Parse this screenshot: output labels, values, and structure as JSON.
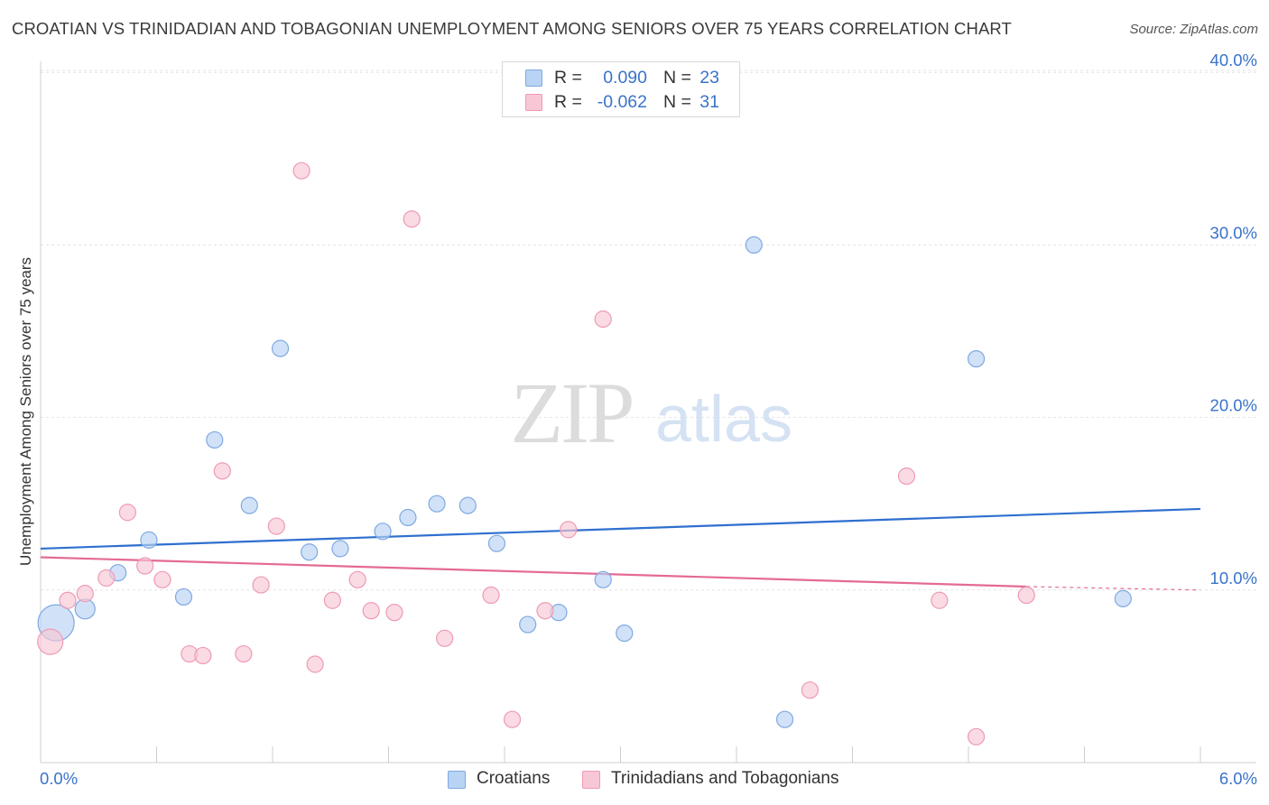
{
  "title": "CROATIAN VS TRINIDADIAN AND TOBAGONIAN UNEMPLOYMENT AMONG SENIORS OVER 75 YEARS CORRELATION CHART",
  "source": "Source: ZipAtlas.com",
  "watermark": {
    "zip": "ZIP",
    "atlas": "atlas"
  },
  "stats": [
    {
      "r_label": "R =",
      "r_value": "0.090",
      "n_label": "N =",
      "n_value": "23"
    },
    {
      "r_label": "R =",
      "r_value": "-0.062",
      "n_label": "N =",
      "n_value": "31"
    }
  ],
  "colors": {
    "croatians_fill": "#b9d3f5",
    "croatians_stroke": "#7ea9e1",
    "croatians_line": "#2f6fcf",
    "trini_fill": "#f8c7d6",
    "trini_stroke": "#ee9ab4",
    "trini_line": "#e46a95",
    "axis_text": "#3a73c9",
    "grid": "#e3e3e3"
  },
  "chart_data": {
    "type": "scatter",
    "title": "CROATIAN VS TRINIDADIAN AND TOBAGONIAN UNEMPLOYMENT AMONG SENIORS OVER 75 YEARS CORRELATION CHART",
    "xlabel": "",
    "ylabel": "Unemployment Among Seniors over 75 years",
    "xlim": [
      0,
      6
    ],
    "ylim": [
      0,
      40
    ],
    "x_tick_labels": [
      "0.0%",
      "6.0%"
    ],
    "y_ticks": [
      10,
      20,
      30,
      40
    ],
    "y_tick_labels": [
      "10.0%",
      "20.0%",
      "30.0%",
      "40.0%"
    ],
    "grid": true,
    "series": [
      {
        "name": "Croatians",
        "points": [
          {
            "x": 0.08,
            "y": 8.1,
            "s": 20
          },
          {
            "x": 0.23,
            "y": 8.9,
            "s": 11
          },
          {
            "x": 0.4,
            "y": 11.0,
            "s": 9
          },
          {
            "x": 0.56,
            "y": 12.9,
            "s": 9
          },
          {
            "x": 0.74,
            "y": 9.6,
            "s": 9
          },
          {
            "x": 0.9,
            "y": 18.7,
            "s": 9
          },
          {
            "x": 1.08,
            "y": 14.9,
            "s": 9
          },
          {
            "x": 1.24,
            "y": 24.0,
            "s": 9
          },
          {
            "x": 1.39,
            "y": 12.2,
            "s": 9
          },
          {
            "x": 1.55,
            "y": 12.4,
            "s": 9
          },
          {
            "x": 1.77,
            "y": 13.4,
            "s": 9
          },
          {
            "x": 1.9,
            "y": 14.2,
            "s": 9
          },
          {
            "x": 2.05,
            "y": 15.0,
            "s": 9
          },
          {
            "x": 2.21,
            "y": 14.9,
            "s": 9
          },
          {
            "x": 2.36,
            "y": 12.7,
            "s": 9
          },
          {
            "x": 2.52,
            "y": 8.0,
            "s": 9
          },
          {
            "x": 2.68,
            "y": 8.7,
            "s": 9
          },
          {
            "x": 2.91,
            "y": 10.6,
            "s": 9
          },
          {
            "x": 3.02,
            "y": 7.5,
            "s": 9
          },
          {
            "x": 3.69,
            "y": 30.0,
            "s": 9
          },
          {
            "x": 3.85,
            "y": 2.5,
            "s": 9
          },
          {
            "x": 4.84,
            "y": 23.4,
            "s": 9
          },
          {
            "x": 5.6,
            "y": 9.5,
            "s": 9
          }
        ],
        "trend": {
          "x": [
            0.0,
            6.0
          ],
          "y": [
            12.4,
            14.7
          ]
        }
      },
      {
        "name": "Trinidadians and Tobagonians",
        "points": [
          {
            "x": 0.05,
            "y": 7.0,
            "s": 14
          },
          {
            "x": 0.14,
            "y": 9.4,
            "s": 9
          },
          {
            "x": 0.23,
            "y": 9.8,
            "s": 9
          },
          {
            "x": 0.34,
            "y": 10.7,
            "s": 9
          },
          {
            "x": 0.45,
            "y": 14.5,
            "s": 9
          },
          {
            "x": 0.54,
            "y": 11.4,
            "s": 9
          },
          {
            "x": 0.63,
            "y": 10.6,
            "s": 9
          },
          {
            "x": 0.77,
            "y": 6.3,
            "s": 9
          },
          {
            "x": 0.84,
            "y": 6.2,
            "s": 9
          },
          {
            "x": 0.94,
            "y": 16.9,
            "s": 9
          },
          {
            "x": 1.05,
            "y": 6.3,
            "s": 9
          },
          {
            "x": 1.14,
            "y": 10.3,
            "s": 9
          },
          {
            "x": 1.22,
            "y": 13.7,
            "s": 9
          },
          {
            "x": 1.35,
            "y": 34.3,
            "s": 9
          },
          {
            "x": 1.42,
            "y": 5.7,
            "s": 9
          },
          {
            "x": 1.51,
            "y": 9.4,
            "s": 9
          },
          {
            "x": 1.64,
            "y": 10.6,
            "s": 9
          },
          {
            "x": 1.71,
            "y": 8.8,
            "s": 9
          },
          {
            "x": 1.83,
            "y": 8.7,
            "s": 9
          },
          {
            "x": 1.92,
            "y": 31.5,
            "s": 9
          },
          {
            "x": 2.09,
            "y": 7.2,
            "s": 9
          },
          {
            "x": 2.33,
            "y": 9.7,
            "s": 9
          },
          {
            "x": 2.44,
            "y": 2.5,
            "s": 9
          },
          {
            "x": 2.61,
            "y": 8.8,
            "s": 9
          },
          {
            "x": 2.73,
            "y": 13.5,
            "s": 9
          },
          {
            "x": 2.91,
            "y": 25.7,
            "s": 9
          },
          {
            "x": 3.98,
            "y": 4.2,
            "s": 9
          },
          {
            "x": 4.48,
            "y": 16.6,
            "s": 9
          },
          {
            "x": 4.65,
            "y": 9.4,
            "s": 9
          },
          {
            "x": 4.84,
            "y": 1.5,
            "s": 9
          },
          {
            "x": 5.1,
            "y": 9.7,
            "s": 9
          }
        ],
        "trend": {
          "x": [
            0.0,
            5.1
          ],
          "y": [
            11.9,
            10.2
          ]
        },
        "trend_ext": {
          "x": [
            5.1,
            6.0
          ],
          "y": [
            10.2,
            10.0
          ]
        }
      }
    ],
    "legend": [
      "Croatians",
      "Trinidadians and Tobagonians"
    ],
    "legend_position": "bottom-center"
  }
}
